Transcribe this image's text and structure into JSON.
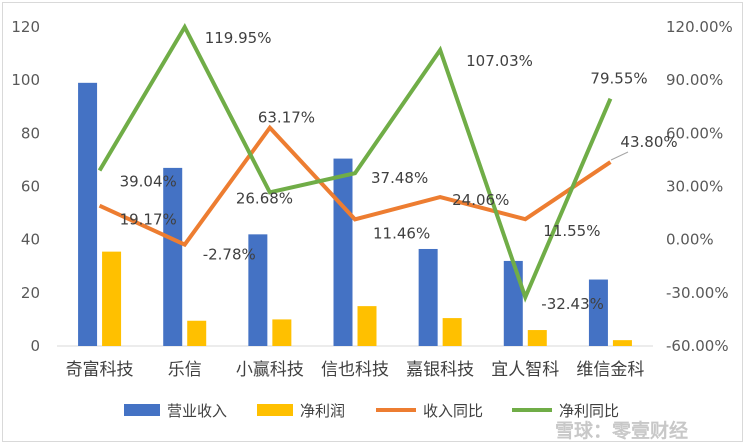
{
  "chart_data": {
    "type": "bar+line",
    "categories": [
      "奇富科技",
      "乐信",
      "小赢科技",
      "信也科技",
      "嘉银科技",
      "宜人智科",
      "维信金科"
    ],
    "bar_series": [
      {
        "name": "营业收入",
        "color": "#4472C4",
        "values": [
          99,
          67,
          42,
          70.5,
          36.5,
          32,
          25
        ]
      },
      {
        "name": "净利润",
        "color": "#FFC000",
        "values": [
          35.5,
          9.5,
          10,
          15,
          10.5,
          6,
          2.2
        ]
      }
    ],
    "line_series": [
      {
        "name": "收入同比",
        "color": "#ED7D31",
        "values": [
          19.17,
          -2.78,
          63.17,
          11.46,
          24.06,
          11.55,
          43.8
        ],
        "labels": [
          "19.17%",
          "-2.78%",
          "63.17%",
          "11.46%",
          "24.06%",
          "11.55%",
          "43.80%"
        ]
      },
      {
        "name": "净利同比",
        "color": "#70AD47",
        "values": [
          39.04,
          119.95,
          26.68,
          37.48,
          107.03,
          -32.43,
          79.55
        ],
        "labels": [
          "39.04%",
          "119.95%",
          "26.68%",
          "37.48%",
          "107.03%",
          "-32.43%",
          "79.55%"
        ]
      }
    ],
    "left_ylim": [
      0,
      120
    ],
    "left_ticks": [
      "0",
      "20",
      "40",
      "60",
      "80",
      "100",
      "120"
    ],
    "right_ylim": [
      -60,
      120
    ],
    "right_ticks": [
      "-60.00%",
      "-30.00%",
      "0.00%",
      "30.00%",
      "60.00%",
      "90.00%",
      "120.00%"
    ],
    "legend": {
      "position": "bottom",
      "items": [
        "营业收入",
        "净利润",
        "收入同比",
        "净利同比"
      ]
    },
    "grid": false
  },
  "watermark": {
    "text": "雪球：零壹财经"
  }
}
